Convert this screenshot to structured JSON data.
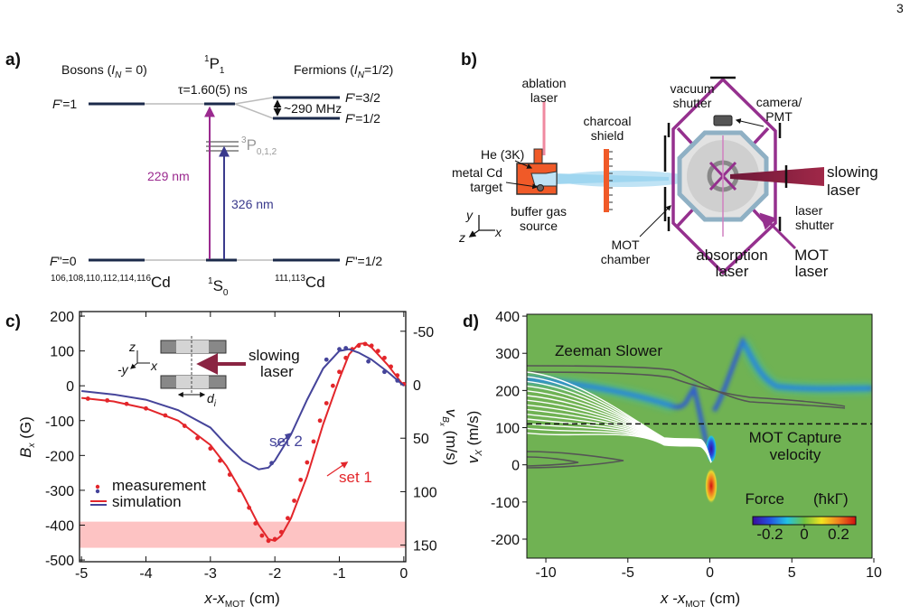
{
  "page_number": "3",
  "panel_a": {
    "label": "a)",
    "bosons": [
      "Bosons (",
      "I",
      "N",
      " = 0)"
    ],
    "fermions": [
      "Fermions (",
      "I",
      "N",
      "=1/2)"
    ],
    "p1": [
      "1",
      "P",
      "1"
    ],
    "lifetime": "τ=1.60(5) ns",
    "f_boson_excited": [
      "F",
      "'=1"
    ],
    "f_fermion_excited_upper": [
      "F",
      "'=3/2"
    ],
    "f_fermion_excited_lower": [
      "F",
      "'=1/2"
    ],
    "splitting": "~290 MHz",
    "p3": [
      "3",
      "P",
      "0,1,2"
    ],
    "wavelength_1": "229 nm",
    "wavelength_2": "326 nm",
    "f_boson_ground": [
      "F",
      "\"=0"
    ],
    "f_fermion_ground": [
      "F",
      "\"=1/2"
    ],
    "boson_isotopes": [
      "106,108,110,112,114,116",
      "Cd"
    ],
    "s0": [
      "1",
      "S",
      "0"
    ],
    "fermion_isotopes": [
      "111,113",
      "Cd"
    ]
  },
  "panel_b": {
    "label": "b)",
    "ablation_laser": [
      "ablation",
      "laser"
    ],
    "helium": "He (3K)",
    "charcoal_shield": [
      "charcoal",
      "shield"
    ],
    "vacuum_shutter": [
      "vacuum",
      "shutter"
    ],
    "camera": [
      "camera/",
      "PMT"
    ],
    "target": [
      "metal Cd",
      "target"
    ],
    "source": [
      "buffer gas",
      "source"
    ],
    "axes": [
      "y",
      "z",
      "x"
    ],
    "mot_chamber": [
      "MOT",
      "chamber"
    ],
    "absorption_laser": [
      "absorption",
      "laser"
    ],
    "mot_laser": [
      "MOT",
      "laser"
    ],
    "slowing_laser": [
      "slowing",
      "laser"
    ],
    "laser_shutter": [
      "laser",
      "shutter"
    ]
  },
  "chart_data": [
    {
      "type": "line",
      "panel_label": "c)",
      "xlabel": [
        "x-x",
        "MOT",
        "  (cm)"
      ],
      "ylabel": [
        "B",
        "x",
        " (G)"
      ],
      "y2label": [
        "v",
        "B",
        "x",
        " (m/s)"
      ],
      "xlim": [
        -5.03,
        0.03
      ],
      "xticks": [
        -5,
        -4,
        -3,
        -2,
        -1,
        0
      ],
      "ylim": [
        -505,
        213
      ],
      "yticks": [
        200,
        100,
        0,
        -100,
        -200,
        -300,
        -400,
        -500
      ],
      "y2lim": [
        165.5,
        -68.4
      ],
      "y2ticks": [
        -50,
        0,
        50,
        100,
        150
      ],
      "shaded_region": {
        "ylim": [
          -465,
          -390
        ],
        "color": "#fdc3c3"
      },
      "legend": [
        "measurement",
        "simulation"
      ],
      "series": [
        {
          "name": "set 1",
          "color": "#e3262b",
          "measurement": {
            "x": [
              -4.9,
              -4.6,
              -4.3,
              -4.0,
              -3.7,
              -3.4,
              -3.2,
              -3.0,
              -2.85,
              -2.7,
              -2.55,
              -2.4,
              -2.3,
              -2.2,
              -2.1,
              -2.0,
              -1.9,
              -1.8,
              -1.7,
              -1.6,
              -1.5,
              -1.4,
              -1.3,
              -1.2,
              -1.1,
              -1.0,
              -0.9,
              -0.8,
              -0.7,
              -0.6,
              -0.5,
              -0.4,
              -0.3,
              -0.2,
              -0.1,
              0
            ],
            "values": [
              -37,
              -42,
              -52,
              -65,
              -85,
              -115,
              -150,
              -180,
              -215,
              -255,
              -300,
              -350,
              -395,
              -430,
              -445,
              -440,
              -420,
              -380,
              -330,
              -270,
              -220,
              -160,
              -100,
              -50,
              0,
              40,
              80,
              105,
              115,
              120,
              115,
              100,
              80,
              55,
              30,
              5
            ]
          },
          "simulation": {
            "x": [
              -5,
              -4.5,
              -4,
              -3.5,
              -3,
              -2.75,
              -2.5,
              -2.25,
              -2.1,
              -2,
              -1.9,
              -1.75,
              -1.5,
              -1.25,
              -1,
              -0.85,
              -0.7,
              -0.6,
              -0.5,
              -0.25,
              0
            ],
            "values": [
              -35,
              -45,
              -65,
              -100,
              -170,
              -230,
              -310,
              -400,
              -440,
              -445,
              -430,
              -380,
              -260,
              -110,
              20,
              90,
              120,
              122,
              110,
              60,
              0
            ]
          }
        },
        {
          "name": "set 2",
          "color": "#45449a",
          "measurement": {
            "x": [
              -2.05,
              -1.8,
              -1.2,
              -1.0,
              -0.9,
              -0.55,
              -0.3,
              -0.1
            ],
            "values": [
              -222,
              -145,
              75,
              105,
              108,
              70,
              40,
              15
            ]
          },
          "simulation": {
            "x": [
              -5,
              -4.5,
              -4,
              -3.5,
              -3,
              -2.75,
              -2.5,
              -2.25,
              -2.1,
              -2,
              -1.75,
              -1.5,
              -1.25,
              -1,
              -0.85,
              -0.7,
              -0.5,
              -0.25,
              0
            ],
            "values": [
              -15,
              -25,
              -40,
              -70,
              -120,
              -170,
              -215,
              -240,
              -235,
              -215,
              -140,
              -40,
              50,
              100,
              105,
              95,
              75,
              40,
              0
            ]
          }
        }
      ],
      "inset": {
        "axes": [
          "z",
          "-y",
          "x"
        ],
        "label": [
          "slowing",
          "laser"
        ],
        "gap": [
          "d",
          "i"
        ]
      }
    },
    {
      "type": "heatmap",
      "panel_label": "d)",
      "xlabel": [
        "x -x",
        "MOT",
        "  (cm)"
      ],
      "ylabel": [
        "v",
        "X",
        " (m/s)"
      ],
      "xlim": [
        -11.16,
        9.89
      ],
      "xticks": [
        -10,
        -5,
        0,
        5,
        10
      ],
      "ylim": [
        -251,
        405
      ],
      "yticks": [
        400,
        300,
        200,
        100,
        0,
        -100,
        -200
      ],
      "background_color": "#70b253",
      "annotations": {
        "zeeman": "Zeeman Slower",
        "capture": [
          "MOT Capture",
          "velocity"
        ]
      },
      "capture_velocity": 110,
      "colorbar": {
        "label": [
          "Force",
          "(ħkΓ)"
        ],
        "clim": [
          -0.3,
          0.3
        ],
        "ticks": [
          -0.2,
          0,
          0.2
        ],
        "colors": [
          "#3a0c9c",
          "#2452e0",
          "#22c2e4",
          "#70c040",
          "#f2e420",
          "#f08020",
          "#d01010"
        ]
      }
    }
  ]
}
